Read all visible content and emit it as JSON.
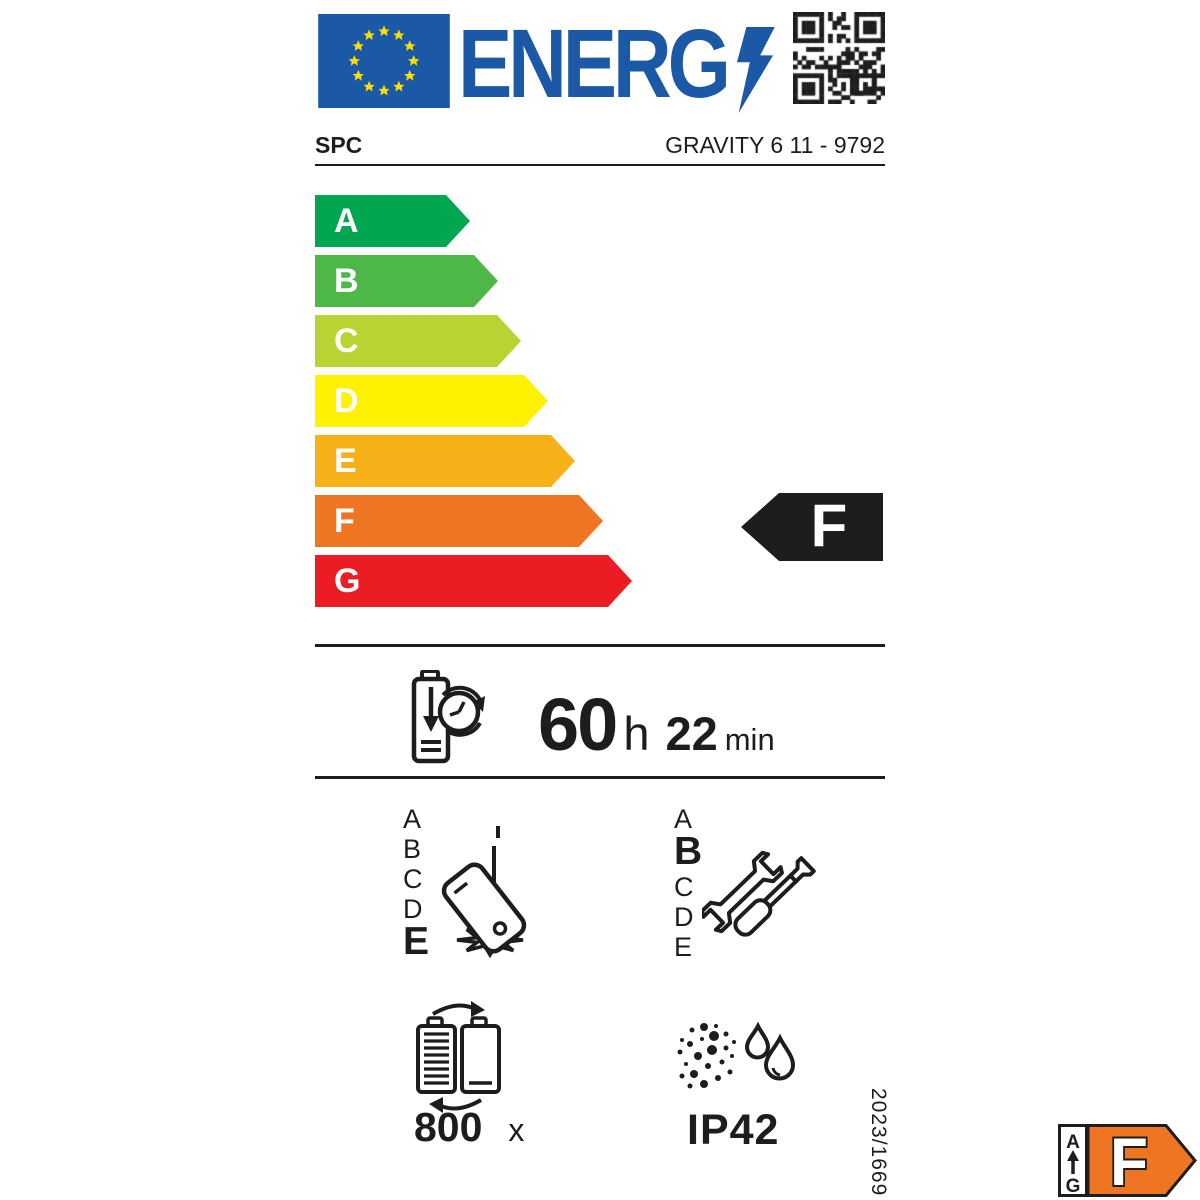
{
  "label": {
    "header": {
      "logo_text": "ENERG",
      "logo_lightning": "lightning-bolt-icon",
      "flag": "eu-flag-icon",
      "qr": "qr-code"
    },
    "product": {
      "brand": "SPC",
      "model": "GRAVITY 6 11 - 9792"
    },
    "efficiency_scale": {
      "grades": [
        {
          "letter": "A",
          "color": "#00a650"
        },
        {
          "letter": "B",
          "color": "#4db848"
        },
        {
          "letter": "C",
          "color": "#b8d432"
        },
        {
          "letter": "D",
          "color": "#fef200"
        },
        {
          "letter": "E",
          "color": "#f6b118"
        },
        {
          "letter": "F",
          "color": "#ee7623"
        },
        {
          "letter": "G",
          "color": "#ec1c24"
        }
      ],
      "rating": "F"
    },
    "battery_endurance": {
      "hours": "60",
      "hours_unit": "h",
      "minutes": "22",
      "minutes_unit": "min",
      "icon": "battery-discharge-clock-icon"
    },
    "drop_resistance": {
      "scale": [
        "A",
        "B",
        "C",
        "D",
        "E"
      ],
      "rating": "E",
      "icon": "falling-phone-icon"
    },
    "repairability": {
      "scale": [
        "A",
        "B",
        "C",
        "D",
        "E"
      ],
      "rating": "B",
      "icon": "wrench-screwdriver-icon"
    },
    "battery_cycles": {
      "value": "800",
      "unit": "x",
      "icon": "battery-cycle-icon"
    },
    "ingress_protection": {
      "value": "IP42",
      "icon": "dust-water-icon"
    },
    "regulation": "2023/1669",
    "mini_label": {
      "scale_top": "A",
      "scale_bottom": "G",
      "rating": "F"
    }
  },
  "colors": {
    "eu_blue": "#1b59a6",
    "ink_black": "#1d1d1b",
    "rating_orange": "#ee7623",
    "star_yellow": "#ffdd00"
  }
}
